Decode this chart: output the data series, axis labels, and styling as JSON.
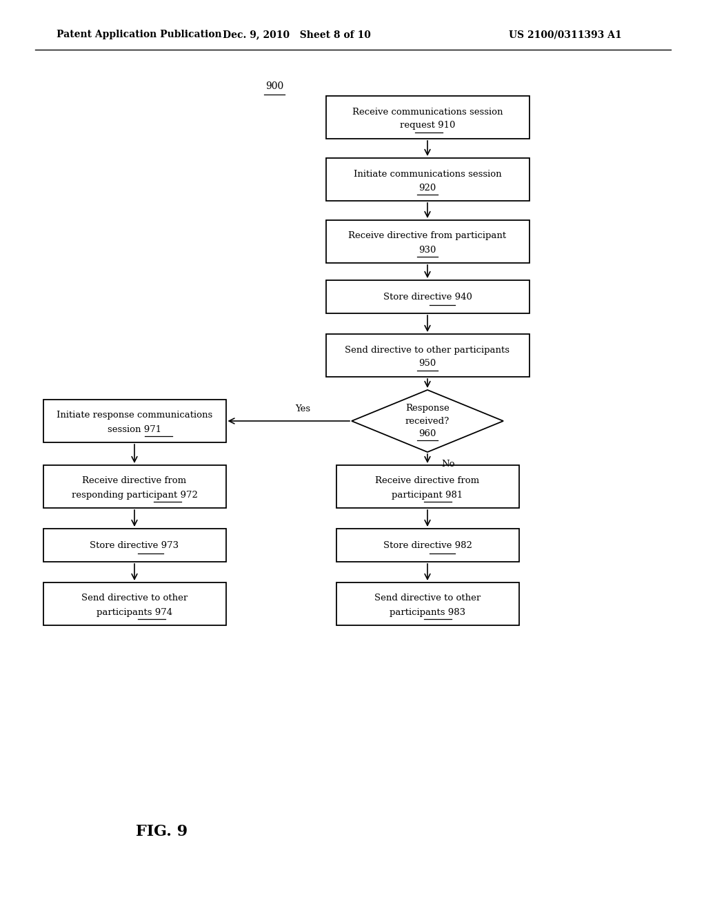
{
  "bg_color": "#ffffff",
  "header_left": "Patent Application Publication",
  "header_mid": "Dec. 9, 2010   Sheet 8 of 10",
  "header_right": "US 2100/0311393 A1",
  "fig_label": "FIG. 9",
  "font_size_box": 9.5,
  "font_size_header": 10,
  "font_size_fig": 14
}
